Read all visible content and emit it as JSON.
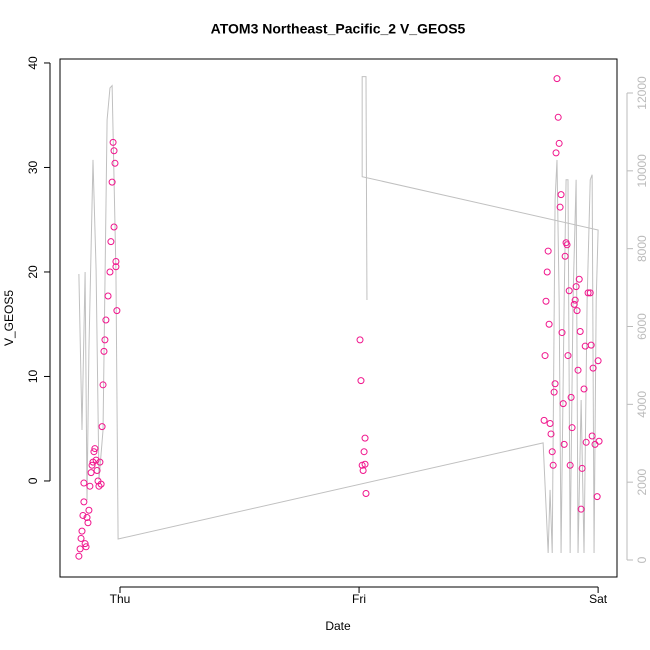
{
  "chart_data": {
    "type": "scatter",
    "title": "ATOM3 Northeast_Pacific_2 V_GEOS5",
    "x_label": "Date",
    "y_label": "V_GEOS5",
    "xlim": [
      -0.251,
      2.079
    ],
    "xticks": [
      {
        "value": 0,
        "label": "Thu"
      },
      {
        "value": 1,
        "label": "Fri"
      },
      {
        "value": 2,
        "label": "Sat"
      }
    ],
    "ylim": [
      -9.19,
      40.38
    ],
    "yticks": [
      0,
      10,
      20,
      30,
      40
    ],
    "y2lim": [
      -437,
      12874
    ],
    "y2ticks": [
      0,
      2000,
      4000,
      6000,
      8000,
      10000,
      12000
    ],
    "series": [
      {
        "color": "#f0148c",
        "x": [
          -0.172,
          -0.167,
          -0.163,
          -0.159,
          -0.155,
          -0.151,
          -0.151,
          -0.146,
          -0.142,
          -0.138,
          -0.134,
          -0.13,
          -0.126,
          -0.121,
          -0.117,
          -0.113,
          -0.109,
          -0.105,
          -0.1,
          -0.096,
          -0.092,
          -0.088,
          -0.084,
          -0.079,
          -0.075,
          -0.071,
          -0.067,
          -0.063,
          -0.059,
          -0.05,
          -0.042,
          -0.038,
          -0.033,
          -0.029,
          -0.025,
          -0.021,
          -0.017,
          -0.013,
          -0.025,
          -0.017,
          1.004,
          1.008,
          1.013,
          1.017,
          1.021,
          1.025,
          1.029,
          1.025,
          1.774,
          1.778,
          1.782,
          1.787,
          1.791,
          1.795,
          1.799,
          1.803,
          1.808,
          1.812,
          1.816,
          1.82,
          1.824,
          1.828,
          1.833,
          1.837,
          1.841,
          1.845,
          1.849,
          1.854,
          1.858,
          1.862,
          1.866,
          1.87,
          1.874,
          1.879,
          1.883,
          1.887,
          1.891,
          1.9,
          1.904,
          1.908,
          1.912,
          1.916,
          1.921,
          1.925,
          1.929,
          1.933,
          1.941,
          1.946,
          1.95,
          1.958,
          1.967,
          1.971,
          1.975,
          1.979,
          1.987,
          1.996,
          2.0,
          2.004
        ],
        "values": [
          -7.2,
          -6.5,
          -5.5,
          -4.8,
          -3.3,
          -2,
          -0.2,
          -6,
          -6.3,
          -3.5,
          -4,
          -2.8,
          -0.5,
          0.8,
          1.5,
          1.8,
          2.8,
          3.1,
          2,
          1,
          0,
          -0.5,
          1.8,
          -0.3,
          5.2,
          9.2,
          12.4,
          13.5,
          15.4,
          17.7,
          20,
          22.9,
          28.6,
          32.4,
          31.6,
          30.4,
          21,
          16.3,
          24.3,
          20.5,
          13.5,
          9.6,
          1.5,
          1,
          2.8,
          4.1,
          -1.2,
          1.6,
          5.8,
          12,
          17.2,
          20,
          22,
          15,
          5.5,
          4.5,
          2.8,
          1.5,
          8.5,
          9.3,
          31.4,
          38.5,
          34.8,
          32.3,
          26.2,
          27.4,
          14.2,
          7.4,
          3.5,
          21.5,
          22.8,
          22.6,
          12,
          18.2,
          1.5,
          8,
          5.1,
          16.9,
          17.3,
          18.6,
          16.3,
          10.6,
          19.3,
          14.3,
          -2.7,
          1.2,
          8.8,
          12.9,
          3.7,
          18,
          18,
          13,
          4.3,
          10.8,
          3.5,
          -1.5,
          11.5,
          3.8
        ]
      },
      {
        "type": "line",
        "axis": "y2",
        "color": "#c0c0c0",
        "x": [
          -0.172,
          -0.159,
          -0.146,
          -0.138,
          -0.13,
          -0.113,
          -0.1,
          -0.088,
          -0.071,
          -0.054,
          -0.042,
          -0.033,
          -0.017,
          -0.008,
          1.77,
          1.791,
          1.799,
          1.808,
          1.82,
          1.828,
          1.837,
          1.845,
          1.858,
          1.866,
          1.874,
          1.883,
          1.895,
          1.908,
          1.916,
          1.929,
          1.941,
          1.954,
          1.967,
          1.975,
          1.983,
          1.992,
          2.0,
          1.013,
          1.013,
          1.029,
          1.033
        ],
        "values": [
          7350,
          3340,
          7400,
          1540,
          5400,
          10280,
          7450,
          2060,
          3340,
          11310,
          12130,
          12190,
          7400,
          540,
          3010,
          180,
          1800,
          180,
          9250,
          10280,
          6680,
          180,
          6680,
          9770,
          9770,
          180,
          6680,
          9770,
          180,
          4110,
          180,
          6680,
          9770,
          9900,
          180,
          6680,
          8480,
          9850,
          12420,
          12420,
          6680
        ]
      }
    ]
  }
}
